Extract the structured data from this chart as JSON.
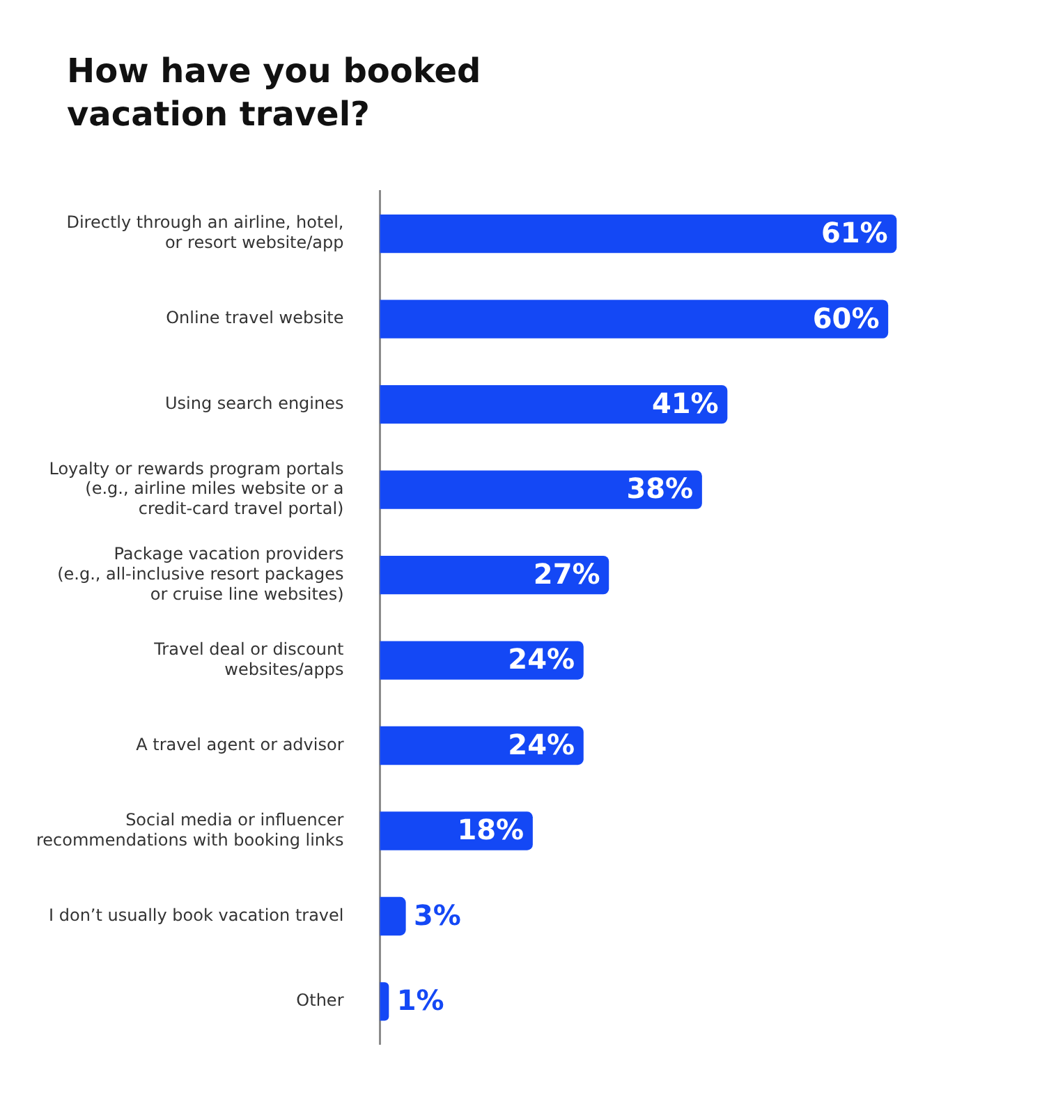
{
  "chart_data": {
    "type": "bar",
    "orientation": "horizontal",
    "title": "How have you booked vacation travel?",
    "categories": [
      "Directly through an airline, hotel, or resort website/app",
      "Online travel website",
      "Using search engines",
      "Loyalty or rewards program portals (e.g., airline miles website or a credit-card travel portal)",
      "Package vacation providers (e.g., all-inclusive resort packages or cruise line websites)",
      "Travel deal or discount websites/apps",
      "A travel agent or advisor",
      "Social media or influencer recommendations with booking links",
      "I don’t usually book vacation travel",
      "Other"
    ],
    "values": [
      61,
      60,
      41,
      38,
      27,
      24,
      24,
      18,
      3,
      1
    ],
    "value_labels": [
      "61%",
      "60%",
      "41%",
      "38%",
      "27%",
      "24%",
      "24%",
      "18%",
      "3%",
      "1%"
    ],
    "color": "#1448f5",
    "tick_labels": "y",
    "grid": false,
    "legend": false
  }
}
